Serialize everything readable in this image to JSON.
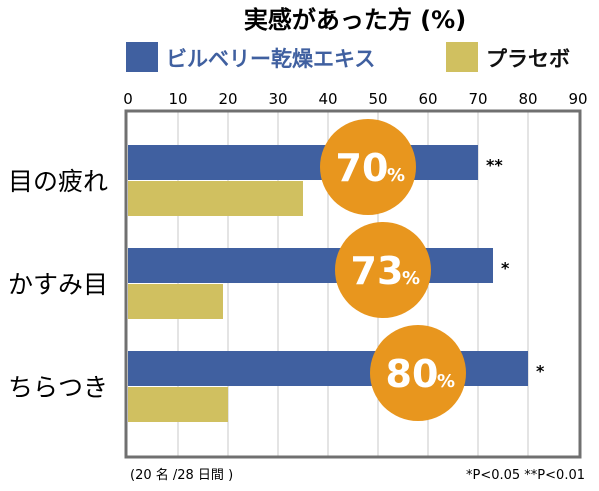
{
  "chart_data": {
    "type": "bar",
    "orientation": "horizontal",
    "title": "実感があった方 (%)",
    "categories": [
      "目の疲れ",
      "かすみ目",
      "ちらつき"
    ],
    "series": [
      {
        "name": "ビルベリー乾燥エキス",
        "values": [
          70,
          73,
          80
        ],
        "color": "#4060a0"
      },
      {
        "name": "プラセボ",
        "values": [
          35,
          19,
          20
        ],
        "color": "#d0c060"
      }
    ],
    "badges": [
      {
        "value": "70",
        "unit": "%"
      },
      {
        "value": "73",
        "unit": "%"
      },
      {
        "value": "80",
        "unit": "%"
      }
    ],
    "significance": [
      "**",
      "*",
      "*"
    ],
    "xlim": [
      0,
      90
    ],
    "xticks": [
      0,
      10,
      20,
      30,
      40,
      50,
      60,
      70,
      80,
      90
    ],
    "grid": true,
    "legend": "top",
    "badge_color": "#e8961e"
  },
  "footnote_left": "(20 名 /28 日間 )",
  "footnote_right": "*P<0.05  **P<0.01"
}
